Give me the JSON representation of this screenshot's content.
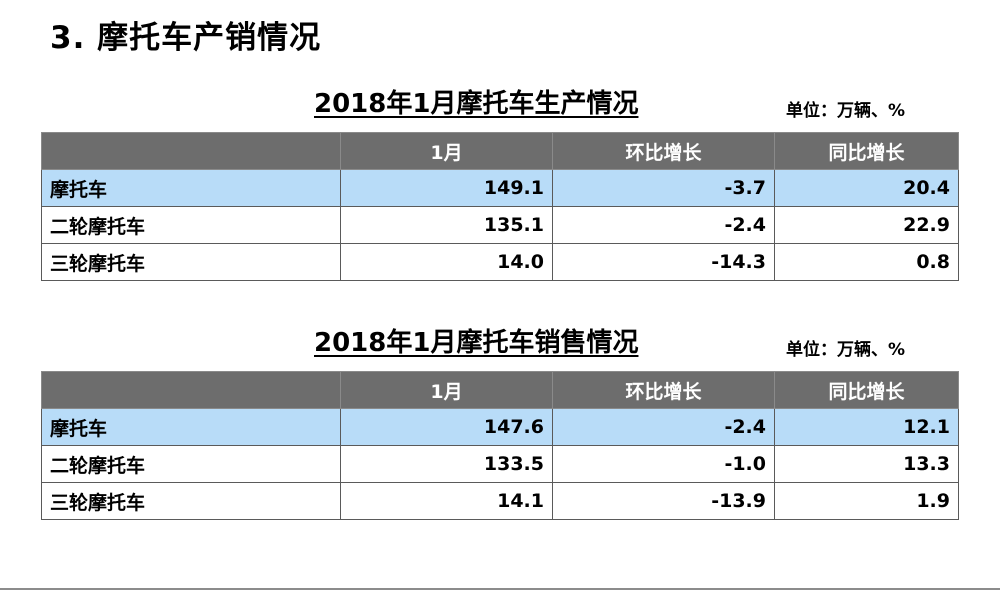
{
  "page": {
    "heading": "3. 摩托车产销情况"
  },
  "production": {
    "title": "2018年1月摩托车生产情况",
    "unit": "单位：万辆、%",
    "columns": [
      "",
      "1月",
      "环比增长",
      "同比增长"
    ],
    "rows": [
      {
        "name": "摩托车",
        "jan": "149.1",
        "mom": "-3.7",
        "yoy": "20.4"
      },
      {
        "name": "二轮摩托车",
        "jan": "135.1",
        "mom": "-2.4",
        "yoy": "22.9"
      },
      {
        "name": "三轮摩托车",
        "jan": "14.0",
        "mom": "-14.3",
        "yoy": "0.8"
      }
    ]
  },
  "sales": {
    "title": "2018年1月摩托车销售情况",
    "unit": "单位：万辆、%",
    "columns": [
      "",
      "1月",
      "环比增长",
      "同比增长"
    ],
    "rows": [
      {
        "name": "摩托车",
        "jan": "147.6",
        "mom": "-2.4",
        "yoy": "12.1"
      },
      {
        "name": "二轮摩托车",
        "jan": "133.5",
        "mom": "-1.0",
        "yoy": "13.3"
      },
      {
        "name": "三轮摩托车",
        "jan": "14.1",
        "mom": "-13.9",
        "yoy": "1.9"
      }
    ]
  },
  "colors": {
    "header_bg": "#6d6d6d",
    "highlight_row_bg": "#b8dcf8"
  }
}
